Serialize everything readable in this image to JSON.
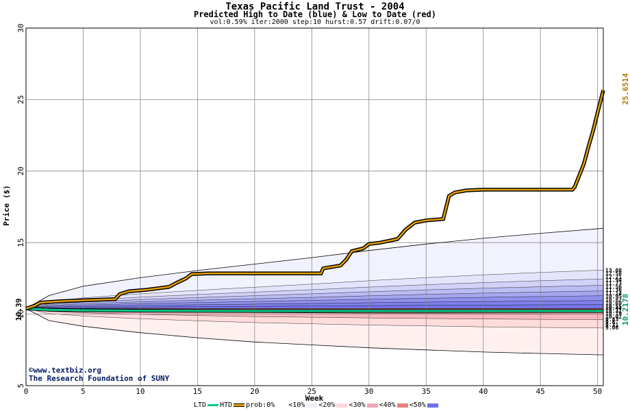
{
  "header": {
    "title": "Texas Pacific Land Trust - 2004",
    "subtitle": "Predicted High to Date (blue) &  Low to Date (red)",
    "params": "vol:0.59% iter:2000 step:10 hurst:0.57 drift:0.07/0"
  },
  "footer": {
    "copyright_symbol": "©",
    "site": "www.textbiz.org",
    "org": "The Research Foundation of SUNY"
  },
  "legend": {
    "ltd": "LTD",
    "htd": "HTD",
    "prob_label": "prob:0%",
    "bins": [
      "<10%",
      "<20%",
      "<30%",
      "<40%",
      "<50%"
    ],
    "colors": {
      "ltd": "#00cc88",
      "htd": "#e6a100",
      "bin10": "#f0f0ff",
      "bin20": "#dcdcfa",
      "bin30": "#c8c8f5",
      "bin40": "#a0a0f0",
      "bin50": "#7070e8"
    }
  },
  "chart_data": {
    "type": "line",
    "title": "Texas Pacific Land Trust - 2004",
    "xlabel": "Week",
    "ylabel": "Price ($)",
    "xlim": [
      0,
      50.5
    ],
    "ylim": [
      5,
      30
    ],
    "xticks": [
      0,
      5,
      10,
      15,
      20,
      25,
      30,
      35,
      40,
      45,
      50
    ],
    "yticks": [
      5,
      10,
      15,
      20,
      25,
      30
    ],
    "grid": true,
    "start_price_label": "10.39",
    "start_price": 10.39,
    "end_high_label": "25.6514",
    "end_high": 25.6514,
    "end_low_label": "10.2178",
    "end_low": 10.2178,
    "high_band_labels": [
      "13.08",
      "12.58",
      "12.21",
      "11.94",
      "11.73",
      "11.56",
      "11.36",
      "11.14",
      "10.95",
      "10.82",
      "10.69",
      "10.55"
    ],
    "low_band_labels": [
      "10.44",
      "10.31",
      "10.19",
      "10.02",
      "9.83",
      "9.6",
      "9.31",
      "9.06"
    ],
    "envelope_upper": {
      "x": [
        0,
        2,
        5,
        10,
        15,
        20,
        25,
        30,
        35,
        40,
        45,
        50.5
      ],
      "y": [
        10.39,
        11.3,
        11.95,
        12.55,
        13.05,
        13.5,
        13.95,
        14.45,
        14.9,
        15.3,
        15.65,
        16.0
      ]
    },
    "envelope_lower": {
      "x": [
        0,
        2,
        5,
        10,
        15,
        20,
        25,
        30,
        35,
        40,
        45,
        50.5
      ],
      "y": [
        10.39,
        9.55,
        9.15,
        8.7,
        8.35,
        8.05,
        7.85,
        7.65,
        7.5,
        7.35,
        7.25,
        7.15
      ]
    },
    "series": [
      {
        "name": "HTD",
        "color": "#e6a100",
        "x": [
          0,
          0.8,
          1.2,
          3,
          6,
          7.8,
          8.2,
          9,
          10.5,
          12.5,
          13.2,
          14,
          14.5,
          16,
          20,
          25.8,
          26,
          27.5,
          28,
          28.5,
          29.5,
          30,
          31,
          32.5,
          33.2,
          34,
          35,
          36.5,
          37,
          37.5,
          38.5,
          40,
          45,
          47.8,
          48,
          48.3,
          48.8,
          49.2,
          49.6,
          50.1,
          50.5
        ],
        "y": [
          10.39,
          10.6,
          10.8,
          10.9,
          11.0,
          11.05,
          11.4,
          11.6,
          11.7,
          11.9,
          12.2,
          12.5,
          12.8,
          12.85,
          12.85,
          12.85,
          13.2,
          13.4,
          13.8,
          14.4,
          14.6,
          14.9,
          15.0,
          15.25,
          15.9,
          16.4,
          16.55,
          16.65,
          18.25,
          18.5,
          18.65,
          18.7,
          18.7,
          18.7,
          18.9,
          19.5,
          20.5,
          21.7,
          22.8,
          24.4,
          25.65
        ]
      },
      {
        "name": "LTD",
        "color": "#00cc88",
        "x": [
          0,
          2,
          5,
          10,
          20,
          30,
          40,
          50.5
        ],
        "y": [
          10.39,
          10.3,
          10.27,
          10.24,
          10.22,
          10.22,
          10.22,
          10.22
        ]
      }
    ]
  }
}
